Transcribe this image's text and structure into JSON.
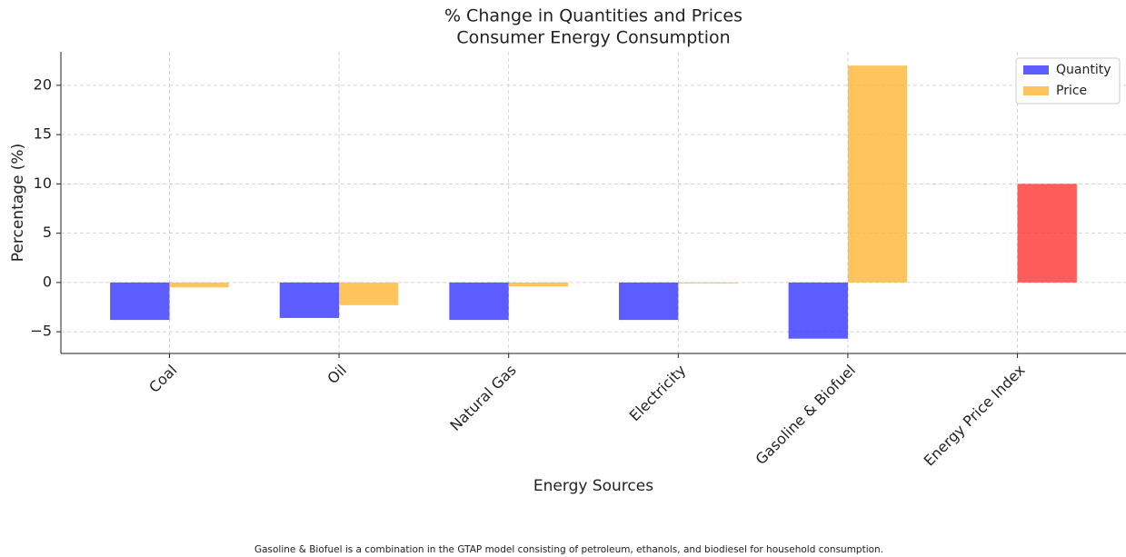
{
  "chart_data": {
    "type": "bar",
    "title": "% Change in Quantities and Prices",
    "subtitle": "Consumer Energy Consumption",
    "x_label": "Energy Sources",
    "y_label": "Percentage (%)",
    "categories": [
      "Coal",
      "Oil",
      "Natural Gas",
      "Electricity",
      "Gasoline & Biofuel",
      "Energy Price Index"
    ],
    "series": [
      {
        "name": "Quantity",
        "color": "#3333ff",
        "values": [
          -3.8,
          -3.6,
          -3.8,
          -3.8,
          -5.7,
          null
        ]
      },
      {
        "name": "Price",
        "color": "#ffb733",
        "colors": [
          "#ffb733",
          "#ffb733",
          "#ffb733",
          "#ffb733",
          "#ffb733",
          "#ff3333"
        ],
        "values": [
          -0.5,
          -2.3,
          -0.4,
          -0.1,
          22.0,
          10.0
        ]
      }
    ],
    "ylim": [
      -7.2,
      23.4
    ],
    "yticks": [
      {
        "value": -5,
        "label": "−5"
      },
      0,
      5,
      10,
      15,
      20
    ],
    "grid": true,
    "legend": "upper right",
    "footnote": "Gasoline & Biofuel is a combination in the GTAP model consisting of petroleum, ethanols, and biodiesel for household consumption."
  }
}
